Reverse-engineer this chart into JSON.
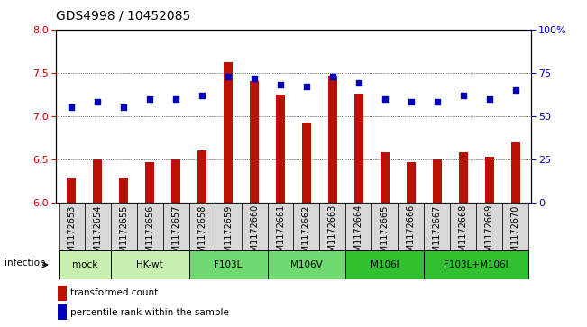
{
  "title": "GDS4998 / 10452085",
  "samples": [
    "GSM1172653",
    "GSM1172654",
    "GSM1172655",
    "GSM1172656",
    "GSM1172657",
    "GSM1172658",
    "GSM1172659",
    "GSM1172660",
    "GSM1172661",
    "GSM1172662",
    "GSM1172663",
    "GSM1172664",
    "GSM1172665",
    "GSM1172666",
    "GSM1172667",
    "GSM1172668",
    "GSM1172669",
    "GSM1172670"
  ],
  "transformed_counts": [
    6.28,
    6.5,
    6.28,
    6.47,
    6.5,
    6.6,
    7.62,
    7.4,
    7.25,
    6.93,
    7.47,
    7.26,
    6.58,
    6.47,
    6.5,
    6.58,
    6.53,
    6.7
  ],
  "percentile_ranks": [
    55,
    58,
    55,
    60,
    60,
    62,
    73,
    72,
    68,
    67,
    73,
    69,
    60,
    58,
    58,
    62,
    60,
    65
  ],
  "ylim_left": [
    6.0,
    8.0
  ],
  "ylim_right": [
    0,
    100
  ],
  "yticks_left": [
    6.0,
    6.5,
    7.0,
    7.5,
    8.0
  ],
  "yticks_right": [
    0,
    25,
    50,
    75,
    100
  ],
  "groups": [
    {
      "label": "mock",
      "start": 0,
      "end": 2,
      "color": "#c8f0b0"
    },
    {
      "label": "HK-wt",
      "start": 2,
      "end": 5,
      "color": "#c8f0b0"
    },
    {
      "label": "F103L",
      "start": 5,
      "end": 8,
      "color": "#70d870"
    },
    {
      "label": "M106V",
      "start": 8,
      "end": 11,
      "color": "#70d870"
    },
    {
      "label": "M106I",
      "start": 11,
      "end": 14,
      "color": "#30c030"
    },
    {
      "label": "F103L+M106I",
      "start": 14,
      "end": 18,
      "color": "#30c030"
    }
  ],
  "bar_color": "#bb1100",
  "dot_color": "#0000bb",
  "infection_label": "infection",
  "legend_bar": "transformed count",
  "legend_dot": "percentile rank within the sample",
  "title_fontsize": 10,
  "tick_label_fontsize": 7,
  "group_label_fontsize": 7.5,
  "legend_fontsize": 7.5,
  "axis_label_color_left": "#cc0000",
  "axis_label_color_right": "#0000cc"
}
